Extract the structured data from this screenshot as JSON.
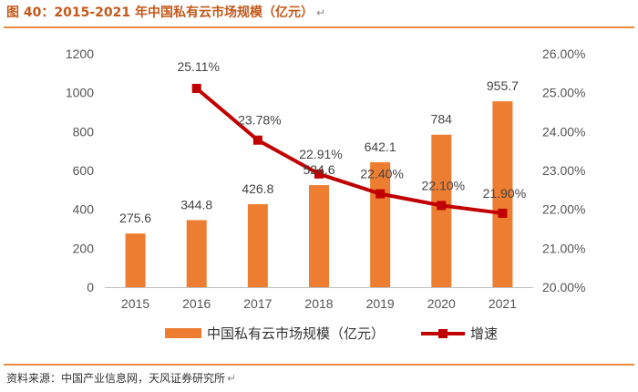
{
  "header": {
    "title": "图 40：2015-2021 年中国私有云市场规模（亿元）",
    "return_mark": "↵"
  },
  "footer": {
    "source": "资料来源：中国产业信息网，天风证券研究所",
    "return_mark": "↵"
  },
  "colors": {
    "bar": "#ed7d31",
    "line": "#c00000",
    "accent": "#ec8a40",
    "axis": "#bfbfbf"
  },
  "chart_data": {
    "type": "bar+line",
    "title": "2015-2021 年中国私有云市场规模（亿元）",
    "categories": [
      "2015",
      "2016",
      "2017",
      "2018",
      "2019",
      "2020",
      "2021"
    ],
    "series": [
      {
        "name": "中国私有云市场规模（亿元）",
        "type": "bar",
        "axis": "left",
        "values": [
          275.6,
          344.8,
          426.8,
          524.6,
          642.1,
          784,
          955.7
        ],
        "labels": [
          "275.6",
          "344.8",
          "426.8",
          "524.6",
          "642.1",
          "784",
          "955.7"
        ]
      },
      {
        "name": "增速",
        "type": "line",
        "axis": "right",
        "values": [
          null,
          25.11,
          23.78,
          22.91,
          22.4,
          22.1,
          21.9
        ],
        "labels": [
          "",
          "25.11%",
          "23.78%",
          "22.91%",
          "22.40%",
          "22.10%",
          "21.90%"
        ]
      }
    ],
    "y_left": {
      "range": [
        0,
        1200
      ],
      "ticks": [
        "0",
        "200",
        "400",
        "600",
        "800",
        "1000",
        "1200"
      ]
    },
    "y_right": {
      "range": [
        20,
        26
      ],
      "ticks": [
        "20.00%",
        "21.00%",
        "22.00%",
        "23.00%",
        "24.00%",
        "25.00%",
        "26.00%"
      ]
    },
    "grid": false,
    "legend_position": "bottom"
  }
}
